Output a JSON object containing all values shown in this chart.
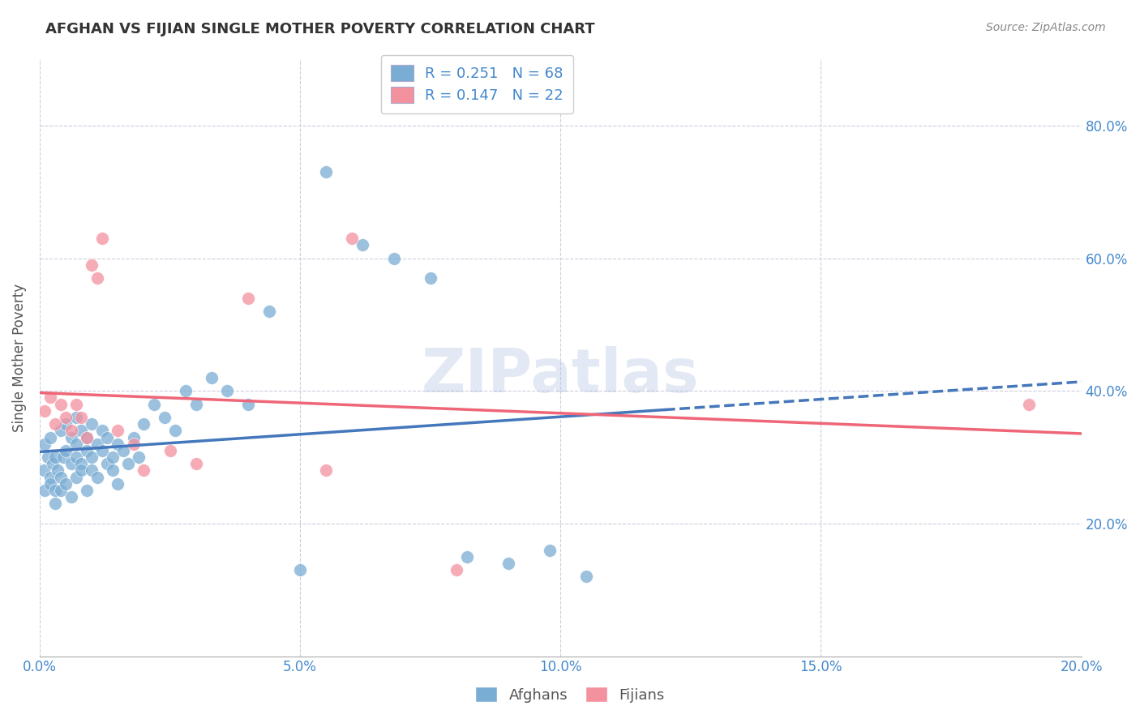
{
  "title": "AFGHAN VS FIJIAN SINGLE MOTHER POVERTY CORRELATION CHART",
  "source": "Source: ZipAtlas.com",
  "ylabel": "Single Mother Poverty",
  "watermark": "ZIPatlas",
  "xlim": [
    0.0,
    0.2
  ],
  "ylim": [
    0.0,
    0.9
  ],
  "ytick_labels_right": [
    "20.0%",
    "40.0%",
    "60.0%",
    "80.0%"
  ],
  "xtick_labels": [
    "0.0%",
    "5.0%",
    "10.0%",
    "15.0%",
    "20.0%"
  ],
  "blue_color": "#7AADD4",
  "pink_color": "#F4919E",
  "blue_line_color": "#4477BB",
  "pink_line_color": "#EE6677",
  "axis_label_color": "#555555",
  "tick_color": "#4488CC",
  "grid_color": "#CCCCDD",
  "watermark_color": "#AABBDD",
  "afghans_x": [
    0.0008,
    0.001,
    0.001,
    0.0015,
    0.002,
    0.002,
    0.002,
    0.0025,
    0.003,
    0.003,
    0.003,
    0.0035,
    0.004,
    0.004,
    0.004,
    0.0045,
    0.005,
    0.005,
    0.005,
    0.006,
    0.006,
    0.006,
    0.007,
    0.007,
    0.007,
    0.007,
    0.008,
    0.008,
    0.008,
    0.009,
    0.009,
    0.009,
    0.01,
    0.01,
    0.01,
    0.011,
    0.011,
    0.012,
    0.012,
    0.013,
    0.013,
    0.014,
    0.014,
    0.015,
    0.015,
    0.016,
    0.017,
    0.018,
    0.019,
    0.02,
    0.022,
    0.024,
    0.026,
    0.028,
    0.03,
    0.033,
    0.036,
    0.04,
    0.044,
    0.05,
    0.055,
    0.062,
    0.068,
    0.075,
    0.082,
    0.09,
    0.098,
    0.105
  ],
  "afghans_y": [
    0.28,
    0.32,
    0.25,
    0.3,
    0.27,
    0.33,
    0.26,
    0.29,
    0.25,
    0.3,
    0.23,
    0.28,
    0.27,
    0.34,
    0.25,
    0.3,
    0.26,
    0.31,
    0.35,
    0.24,
    0.29,
    0.33,
    0.27,
    0.32,
    0.36,
    0.3,
    0.29,
    0.34,
    0.28,
    0.33,
    0.31,
    0.25,
    0.3,
    0.35,
    0.28,
    0.32,
    0.27,
    0.31,
    0.34,
    0.29,
    0.33,
    0.3,
    0.28,
    0.32,
    0.26,
    0.31,
    0.29,
    0.33,
    0.3,
    0.35,
    0.38,
    0.36,
    0.34,
    0.4,
    0.38,
    0.42,
    0.4,
    0.38,
    0.52,
    0.13,
    0.73,
    0.62,
    0.6,
    0.57,
    0.15,
    0.14,
    0.16,
    0.12
  ],
  "fijians_x": [
    0.001,
    0.002,
    0.003,
    0.004,
    0.005,
    0.006,
    0.007,
    0.008,
    0.009,
    0.01,
    0.011,
    0.012,
    0.015,
    0.018,
    0.02,
    0.025,
    0.03,
    0.04,
    0.055,
    0.06,
    0.08,
    0.19
  ],
  "fijians_y": [
    0.37,
    0.39,
    0.35,
    0.38,
    0.36,
    0.34,
    0.38,
    0.36,
    0.33,
    0.59,
    0.57,
    0.63,
    0.34,
    0.32,
    0.28,
    0.31,
    0.29,
    0.54,
    0.28,
    0.63,
    0.13,
    0.38
  ],
  "bg_color": "#FFFFFF"
}
